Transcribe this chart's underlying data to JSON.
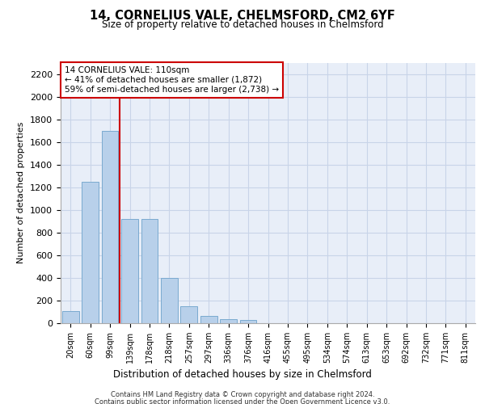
{
  "title_line1": "14, CORNELIUS VALE, CHELMSFORD, CM2 6YF",
  "title_line2": "Size of property relative to detached houses in Chelmsford",
  "xlabel": "Distribution of detached houses by size in Chelmsford",
  "ylabel": "Number of detached properties",
  "footer_line1": "Contains HM Land Registry data © Crown copyright and database right 2024.",
  "footer_line2": "Contains public sector information licensed under the Open Government Licence v3.0.",
  "categories": [
    "20sqm",
    "60sqm",
    "99sqm",
    "139sqm",
    "178sqm",
    "218sqm",
    "257sqm",
    "297sqm",
    "336sqm",
    "376sqm",
    "416sqm",
    "455sqm",
    "495sqm",
    "534sqm",
    "574sqm",
    "613sqm",
    "653sqm",
    "692sqm",
    "732sqm",
    "771sqm",
    "811sqm"
  ],
  "values": [
    110,
    1245,
    1700,
    920,
    920,
    400,
    150,
    65,
    35,
    25,
    0,
    0,
    0,
    0,
    0,
    0,
    0,
    0,
    0,
    0,
    0
  ],
  "bar_color": "#b8d0ea",
  "bar_edge_color": "#7aaad0",
  "grid_color": "#c8d4e8",
  "bg_color": "#e8eef8",
  "annotation_text": "14 CORNELIUS VALE: 110sqm\n← 41% of detached houses are smaller (1,872)\n59% of semi-detached houses are larger (2,738) →",
  "annotation_box_color": "#ffffff",
  "annotation_box_edge": "#cc0000",
  "vline_x": 2.5,
  "vline_color": "#cc0000",
  "ylim": [
    0,
    2300
  ],
  "yticks": [
    0,
    200,
    400,
    600,
    800,
    1000,
    1200,
    1400,
    1600,
    1800,
    2000,
    2200
  ]
}
